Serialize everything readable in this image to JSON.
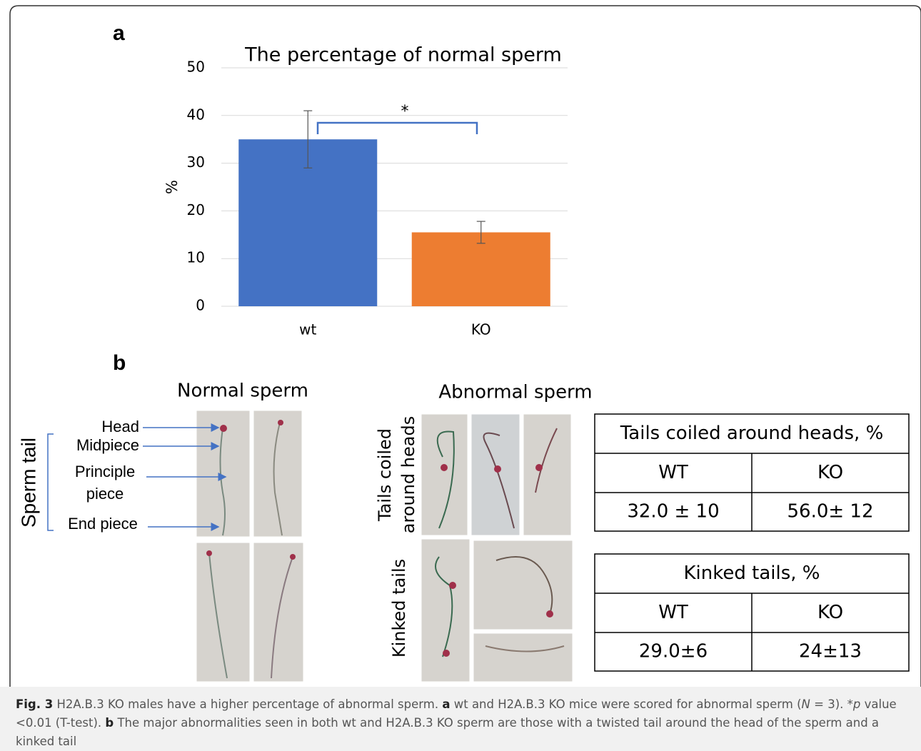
{
  "chart_data": {
    "type": "bar",
    "title": "The percentage of normal sperm",
    "y_label": "%",
    "categories": [
      "wt",
      "KO"
    ],
    "values": [
      35,
      15.5
    ],
    "errors": [
      6,
      2.3
    ],
    "colors": [
      "#4472c4",
      "#ed7d31"
    ],
    "ylim": [
      0,
      50
    ],
    "yticks": [
      0,
      10,
      20,
      30,
      40,
      50
    ],
    "grid": true,
    "annotation": "*"
  },
  "panels": {
    "a": "a",
    "b": "b"
  },
  "panel_b": {
    "normal_title": "Normal sperm",
    "abnormal_title": "Abnormal sperm",
    "sperm_tail": "Sperm tail",
    "parts": [
      "Head",
      "Midpiece",
      "Principle",
      "piece",
      "End piece"
    ],
    "row_labels": {
      "coiled": [
        "Tails coiled",
        "around heads"
      ],
      "kinked": "Kinked tails"
    }
  },
  "tables": [
    {
      "title": "Tails coiled around heads, %",
      "header": [
        "WT",
        "KO"
      ],
      "row": [
        "32.0 ± 10",
        "56.0± 12"
      ]
    },
    {
      "title": "Kinked tails, %",
      "header": [
        "WT",
        "KO"
      ],
      "row": [
        "29.0±6",
        "24±13"
      ]
    }
  ],
  "caption": {
    "label": "Fig. 3",
    "text": [
      "H2A.B.3 KO males have a higher percentage of abnormal sperm.",
      "a",
      "wt and H2A.B.3 KO mice were scored for abnormal sperm (",
      "N",
      " = 3). *",
      "p",
      " value <0.01 (T-test). ",
      "b",
      "The major abnormalities seen in both wt and H2A.B.3 KO sperm are those with a twisted tail around the head of the sperm and a kinked tail"
    ]
  }
}
